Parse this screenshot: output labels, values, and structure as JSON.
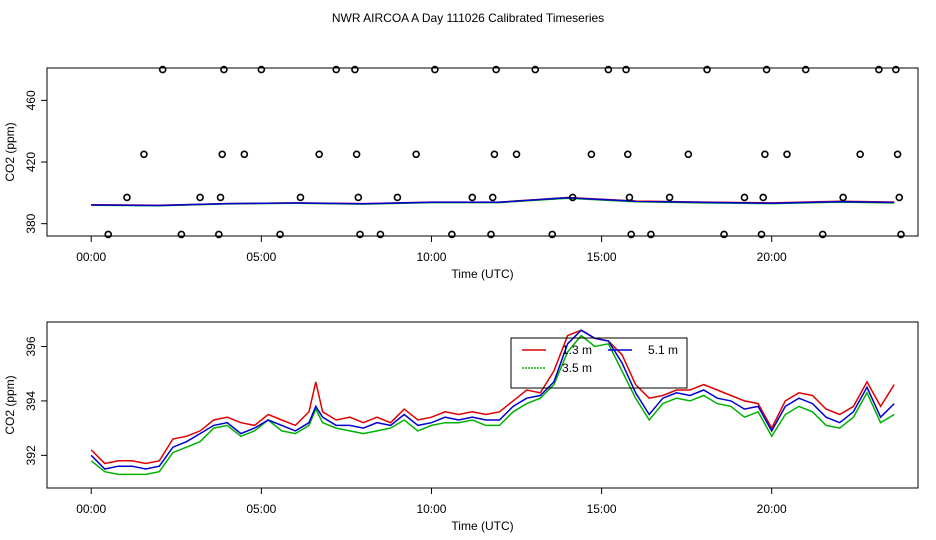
{
  "title": "NWR AIRCOA A  Day 111026  Calibrated Timeseries",
  "colors": {
    "line_1_3m": "#e00000",
    "line_3_5m": "#00b000",
    "line_5_1m": "#0000d0",
    "markers": "#000000"
  },
  "chart_data": [
    {
      "type": "scatter",
      "title": "",
      "xlabel": "Time (UTC)",
      "ylabel": "CO2 (ppm)",
      "xlim": [
        -1.3,
        24.3
      ],
      "ylim": [
        372,
        481
      ],
      "x_ticks": [
        "00:00",
        "05:00",
        "10:00",
        "15:00",
        "20:00"
      ],
      "x_tick_values": [
        0,
        5,
        10,
        15,
        20
      ],
      "y_ticks": [
        "380",
        "420",
        "460"
      ],
      "y_tick_values": [
        380,
        420,
        460
      ],
      "calibration_points": [
        {
          "x": 0.5,
          "y": 373
        },
        {
          "x": 1.05,
          "y": 397
        },
        {
          "x": 1.55,
          "y": 425
        },
        {
          "x": 2.1,
          "y": 480
        },
        {
          "x": 2.65,
          "y": 373
        },
        {
          "x": 3.2,
          "y": 397
        },
        {
          "x": 3.75,
          "y": 373
        },
        {
          "x": 3.8,
          "y": 397
        },
        {
          "x": 3.85,
          "y": 425
        },
        {
          "x": 3.9,
          "y": 480
        },
        {
          "x": 4.5,
          "y": 425
        },
        {
          "x": 5.0,
          "y": 480
        },
        {
          "x": 5.55,
          "y": 373
        },
        {
          "x": 6.15,
          "y": 397
        },
        {
          "x": 6.7,
          "y": 425
        },
        {
          "x": 7.2,
          "y": 480
        },
        {
          "x": 7.75,
          "y": 480
        },
        {
          "x": 7.8,
          "y": 425
        },
        {
          "x": 7.85,
          "y": 397
        },
        {
          "x": 7.9,
          "y": 373
        },
        {
          "x": 8.5,
          "y": 373
        },
        {
          "x": 9.0,
          "y": 397
        },
        {
          "x": 9.55,
          "y": 425
        },
        {
          "x": 10.1,
          "y": 480
        },
        {
          "x": 10.6,
          "y": 373
        },
        {
          "x": 11.2,
          "y": 397
        },
        {
          "x": 11.75,
          "y": 373
        },
        {
          "x": 11.8,
          "y": 397
        },
        {
          "x": 11.85,
          "y": 425
        },
        {
          "x": 11.9,
          "y": 480
        },
        {
          "x": 12.5,
          "y": 425
        },
        {
          "x": 13.05,
          "y": 480
        },
        {
          "x": 13.55,
          "y": 373
        },
        {
          "x": 14.15,
          "y": 397
        },
        {
          "x": 14.7,
          "y": 425
        },
        {
          "x": 15.2,
          "y": 480
        },
        {
          "x": 15.72,
          "y": 480
        },
        {
          "x": 15.77,
          "y": 425
        },
        {
          "x": 15.82,
          "y": 397
        },
        {
          "x": 15.87,
          "y": 373
        },
        {
          "x": 16.45,
          "y": 373
        },
        {
          "x": 17.0,
          "y": 397
        },
        {
          "x": 17.55,
          "y": 425
        },
        {
          "x": 18.1,
          "y": 480
        },
        {
          "x": 18.6,
          "y": 373
        },
        {
          "x": 19.2,
          "y": 397
        },
        {
          "x": 19.7,
          "y": 373
        },
        {
          "x": 19.75,
          "y": 397
        },
        {
          "x": 19.8,
          "y": 425
        },
        {
          "x": 19.85,
          "y": 480
        },
        {
          "x": 20.45,
          "y": 425
        },
        {
          "x": 21.0,
          "y": 480
        },
        {
          "x": 21.5,
          "y": 373
        },
        {
          "x": 22.1,
          "y": 397
        },
        {
          "x": 22.6,
          "y": 425
        },
        {
          "x": 23.15,
          "y": 480
        },
        {
          "x": 23.65,
          "y": 480
        },
        {
          "x": 23.7,
          "y": 425
        },
        {
          "x": 23.75,
          "y": 397
        },
        {
          "x": 23.8,
          "y": 373
        }
      ],
      "series": [
        {
          "name": "1.3 m",
          "x": [
            0,
            2,
            4,
            6,
            8,
            10,
            12,
            14,
            16,
            18,
            20,
            22,
            23.6
          ],
          "values": [
            392.3,
            392,
            393,
            393.5,
            393,
            394,
            394,
            397,
            394.7,
            394,
            393.5,
            394.5,
            394.0
          ]
        },
        {
          "name": "3.5 m",
          "x": [
            0,
            2,
            4,
            6,
            8,
            10,
            12,
            14,
            16,
            18,
            20,
            22,
            23.6
          ],
          "values": [
            392.0,
            391.6,
            392.8,
            393.2,
            392.7,
            393.7,
            393.7,
            396.5,
            394.2,
            393.5,
            393.0,
            394.0,
            393.5
          ]
        },
        {
          "name": "5.1 m",
          "x": [
            0,
            2,
            4,
            6,
            8,
            10,
            12,
            14,
            16,
            18,
            20,
            22,
            23.6
          ],
          "values": [
            392.1,
            391.8,
            393.0,
            393.4,
            392.9,
            393.9,
            393.9,
            396.8,
            394.5,
            393.8,
            393.3,
            394.3,
            393.8
          ]
        }
      ]
    },
    {
      "type": "line",
      "title": "",
      "xlabel": "Time (UTC)",
      "ylabel": "CO2 (ppm)",
      "xlim": [
        -1.3,
        24.3
      ],
      "ylim": [
        390.8,
        396.9
      ],
      "x_ticks": [
        "00:00",
        "05:00",
        "10:00",
        "15:00",
        "20:00"
      ],
      "x_tick_values": [
        0,
        5,
        10,
        15,
        20
      ],
      "y_ticks": [
        "392",
        "394",
        "396"
      ],
      "y_tick_values": [
        392,
        394,
        396
      ],
      "legend": [
        "1.3 m",
        "5.1 m",
        "3.5 m"
      ],
      "legend_position": "top-center",
      "x": [
        0.0,
        0.4,
        0.8,
        1.2,
        1.6,
        2.0,
        2.4,
        2.8,
        3.2,
        3.6,
        4.0,
        4.4,
        4.8,
        5.2,
        5.6,
        6.0,
        6.4,
        6.6,
        6.8,
        7.2,
        7.6,
        8.0,
        8.4,
        8.8,
        9.2,
        9.6,
        10.0,
        10.4,
        10.8,
        11.2,
        11.6,
        12.0,
        12.4,
        12.8,
        13.2,
        13.6,
        14.0,
        14.4,
        14.8,
        15.2,
        15.6,
        16.0,
        16.4,
        16.8,
        17.2,
        17.6,
        18.0,
        18.4,
        18.8,
        19.2,
        19.6,
        20.0,
        20.4,
        20.8,
        21.2,
        21.6,
        22.0,
        22.4,
        22.8,
        23.2,
        23.6
      ],
      "series": [
        {
          "name": "1.3 m",
          "values": [
            392.2,
            391.7,
            391.8,
            391.8,
            391.7,
            391.8,
            392.6,
            392.7,
            392.9,
            393.3,
            393.4,
            393.2,
            393.1,
            393.5,
            393.3,
            393.1,
            393.6,
            394.7,
            393.6,
            393.3,
            393.4,
            393.2,
            393.4,
            393.2,
            393.7,
            393.3,
            393.4,
            393.6,
            393.5,
            393.6,
            393.5,
            393.6,
            394.0,
            394.4,
            394.3,
            395.1,
            396.4,
            396.6,
            396.3,
            396.2,
            395.7,
            394.6,
            394.1,
            394.2,
            394.4,
            394.4,
            394.6,
            394.4,
            394.2,
            394.0,
            393.9,
            393.0,
            394.0,
            394.3,
            394.2,
            393.7,
            393.5,
            393.8,
            394.7,
            393.8,
            394.6
          ]
        },
        {
          "name": "3.5 m",
          "values": [
            391.8,
            391.4,
            391.3,
            391.3,
            391.3,
            391.4,
            392.1,
            392.3,
            392.5,
            393.0,
            393.1,
            392.7,
            392.9,
            393.3,
            392.9,
            392.8,
            393.1,
            393.7,
            393.2,
            393.0,
            392.9,
            392.8,
            392.9,
            393.0,
            393.3,
            392.9,
            393.1,
            393.2,
            393.2,
            393.3,
            393.1,
            393.1,
            393.6,
            393.9,
            394.1,
            394.6,
            395.8,
            396.4,
            396.0,
            396.1,
            395.1,
            394.1,
            393.3,
            393.9,
            394.1,
            394.0,
            394.2,
            393.9,
            393.8,
            393.4,
            393.6,
            392.7,
            393.5,
            393.8,
            393.6,
            393.1,
            393.0,
            393.4,
            394.3,
            393.2,
            393.5
          ]
        },
        {
          "name": "5.1 m",
          "values": [
            392.0,
            391.5,
            391.6,
            391.6,
            391.5,
            391.6,
            392.3,
            392.5,
            392.8,
            393.1,
            393.2,
            392.8,
            393.0,
            393.3,
            393.1,
            392.9,
            393.2,
            393.8,
            393.4,
            393.1,
            393.1,
            393.0,
            393.2,
            393.1,
            393.5,
            393.1,
            393.2,
            393.4,
            393.3,
            393.4,
            393.3,
            393.3,
            393.8,
            394.1,
            394.2,
            394.7,
            396.1,
            396.6,
            396.3,
            396.2,
            395.4,
            394.3,
            393.5,
            394.1,
            394.3,
            394.2,
            394.4,
            394.1,
            394.0,
            393.7,
            393.8,
            392.9,
            393.8,
            394.1,
            393.9,
            393.4,
            393.2,
            393.6,
            394.5,
            393.4,
            393.9
          ]
        }
      ]
    }
  ]
}
